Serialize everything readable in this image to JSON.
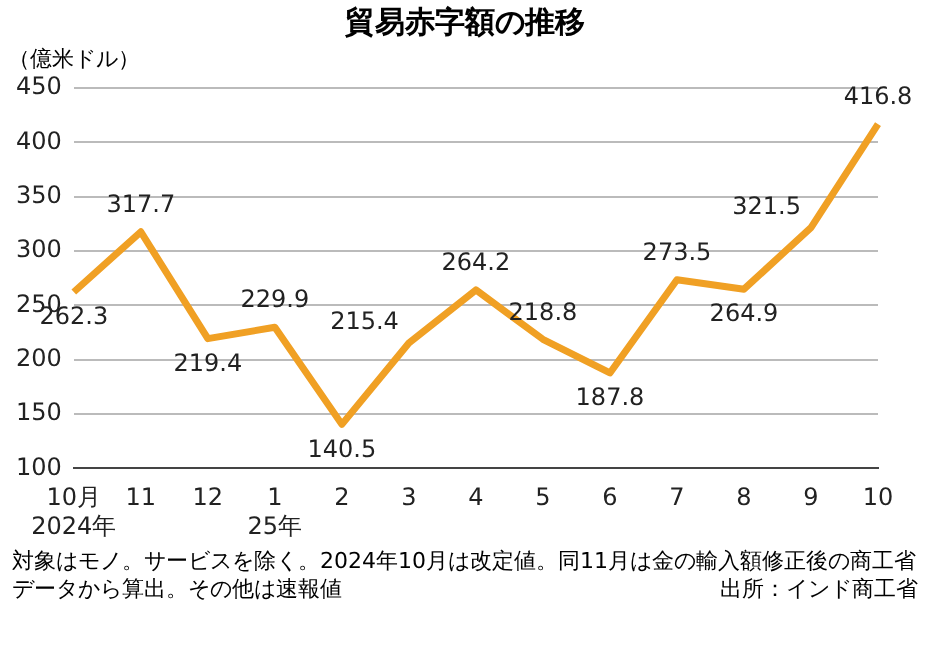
{
  "chart_data": {
    "type": "line",
    "title": "貿易赤字額の推移",
    "ylabel": "（億米ドル）",
    "categories": [
      "10月\n2024年",
      "11",
      "12",
      "1\n25年",
      "2",
      "3",
      "4",
      "5",
      "6",
      "7",
      "8",
      "9",
      "10"
    ],
    "values": [
      262.3,
      317.7,
      219.4,
      229.9,
      140.5,
      215.4,
      264.2,
      218.8,
      187.8,
      273.5,
      264.9,
      321.5,
      416.8
    ],
    "color": "#f0a024",
    "ylim": [
      100,
      450
    ],
    "yticks": [
      100,
      150,
      200,
      250,
      300,
      350,
      400,
      450
    ],
    "grid": "y",
    "data_labels": true,
    "marker": "none",
    "line_style": "solid",
    "legend": false,
    "annotations": [
      "対象はモノ。サービスを除く。2024年10月は改定値。同11月は金の輸入額修正後の商工省データから算出。その他は速報値",
      "出所：インド商工省"
    ]
  }
}
